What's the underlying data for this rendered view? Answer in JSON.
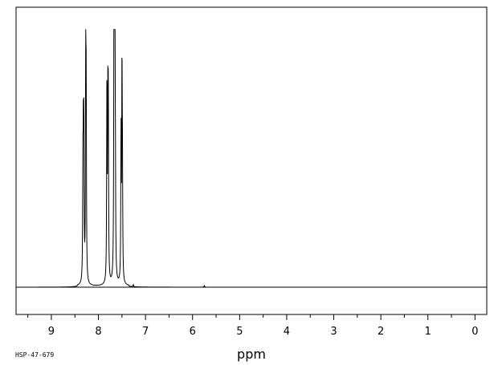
{
  "chart_data": {
    "type": "line",
    "title": "",
    "xlabel": "ppm",
    "ylabel": "",
    "code": "HSP-47-679",
    "xlim": [
      9.75,
      -0.25
    ],
    "x_reversed": true,
    "ylim": [
      -0.12,
      1.12
    ],
    "grid": false,
    "legend": "none",
    "major_ticks": [
      9,
      8,
      7,
      6,
      5,
      4,
      3,
      2,
      1,
      0
    ],
    "tick_labels": [
      "9",
      "8",
      "7",
      "6",
      "5",
      "4",
      "3",
      "2",
      "1",
      "0"
    ],
    "minor_step": 0.5,
    "peaks": [
      {
        "ppm": 8.33,
        "height": 0.45
      },
      {
        "ppm": 8.32,
        "height": 0.52
      },
      {
        "ppm": 8.31,
        "height": 0.63
      },
      {
        "ppm": 8.27,
        "height": 1.02
      },
      {
        "ppm": 8.26,
        "height": 0.72
      },
      {
        "ppm": 7.82,
        "height": 0.88
      },
      {
        "ppm": 7.8,
        "height": 0.7
      },
      {
        "ppm": 7.79,
        "height": 0.72
      },
      {
        "ppm": 7.67,
        "height": 1.12
      },
      {
        "ppm": 7.66,
        "height": 0.85
      },
      {
        "ppm": 7.65,
        "height": 0.95
      },
      {
        "ppm": 7.64,
        "height": 0.4
      },
      {
        "ppm": 7.52,
        "height": 0.65
      },
      {
        "ppm": 7.5,
        "height": 0.9
      },
      {
        "ppm": 7.49,
        "height": 0.45
      }
    ],
    "impurities": [
      {
        "ppm": 7.26,
        "height": 0.01
      },
      {
        "ppm": 5.75,
        "height": 0.008
      }
    ]
  }
}
